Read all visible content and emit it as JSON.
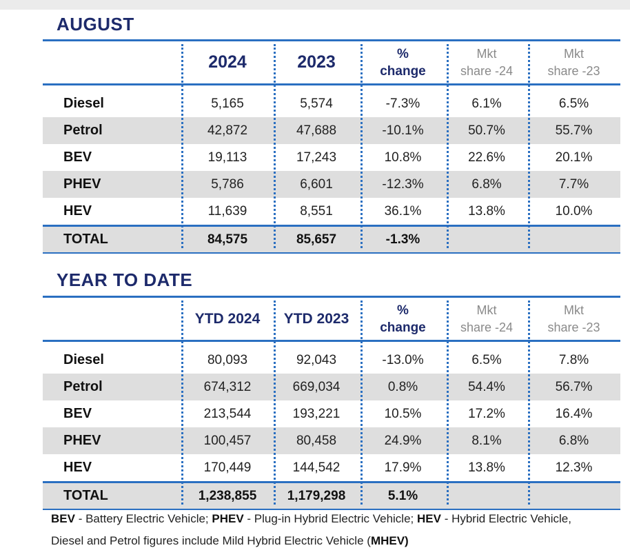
{
  "august": {
    "title": "AUGUST",
    "headers": {
      "col1": "2024",
      "col2": "2023",
      "pct_top": "%",
      "pct_bottom": "change",
      "mkt1_top": "Mkt",
      "mkt1_bottom": "share -24",
      "mkt2_top": "Mkt",
      "mkt2_bottom": "share -23"
    },
    "rows": [
      [
        "Diesel",
        "5,165",
        "5,574",
        "-7.3%",
        "6.1%",
        "6.5%"
      ],
      [
        "Petrol",
        "42,872",
        "47,688",
        "-10.1%",
        "50.7%",
        "55.7%"
      ],
      [
        "BEV",
        "19,113",
        "17,243",
        "10.8%",
        "22.6%",
        "20.1%"
      ],
      [
        "PHEV",
        "5,786",
        "6,601",
        "-12.3%",
        "6.8%",
        "7.7%"
      ],
      [
        "HEV",
        "11,639",
        "8,551",
        "36.1%",
        "13.8%",
        "10.0%"
      ]
    ],
    "total": [
      "TOTAL",
      "84,575",
      "85,657",
      "-1.3%",
      "",
      ""
    ]
  },
  "ytd": {
    "title": "YEAR TO DATE",
    "headers": {
      "col1": "YTD 2024",
      "col2": "YTD 2023",
      "pct_top": "%",
      "pct_bottom": "change",
      "mkt1_top": "Mkt",
      "mkt1_bottom": "share -24",
      "mkt2_top": "Mkt",
      "mkt2_bottom": "share -23"
    },
    "rows": [
      [
        "Diesel",
        "80,093",
        "92,043",
        "-13.0%",
        "6.5%",
        "7.8%"
      ],
      [
        "Petrol",
        "674,312",
        "669,034",
        "0.8%",
        "54.4%",
        "56.7%"
      ],
      [
        "BEV",
        "213,544",
        "193,221",
        "10.5%",
        "17.2%",
        "16.4%"
      ],
      [
        "PHEV",
        "100,457",
        "80,458",
        "24.9%",
        "8.1%",
        "6.8%"
      ],
      [
        "HEV",
        "170,449",
        "144,542",
        "17.9%",
        "13.8%",
        "12.3%"
      ]
    ],
    "total": [
      "TOTAL",
      "1,238,855",
      "1,179,298",
      "5.1%",
      "",
      ""
    ]
  },
  "footnote": {
    "l1": [
      {
        "t": "BEV",
        "b": true
      },
      {
        "t": " - Battery Electric Vehicle; ",
        "b": false
      },
      {
        "t": "PHEV",
        "b": true
      },
      {
        "t": " - Plug-in Hybrid Electric Vehicle; ",
        "b": false
      },
      {
        "t": "HEV",
        "b": true
      },
      {
        "t": " - Hybrid Electric Vehicle,",
        "b": false
      }
    ],
    "l2": [
      {
        "t": "Diesel and Petrol figures include Mild Hybrid Electric Vehicle (",
        "b": false
      },
      {
        "t": "MHEV)",
        "b": true
      }
    ]
  }
}
